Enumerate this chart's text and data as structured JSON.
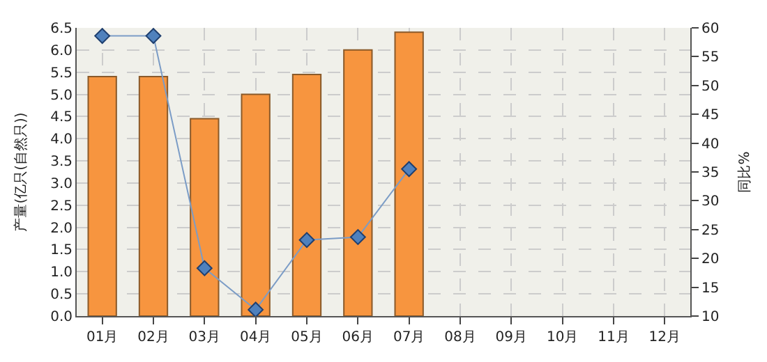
{
  "chart_data": {
    "type": "bar",
    "ylabel": "产量(亿只(自然只))",
    "y2label": "同比%",
    "categories": [
      "01月",
      "02月",
      "03月",
      "04月",
      "05月",
      "06月",
      "07月",
      "08月",
      "09月",
      "10月",
      "11月",
      "12月"
    ],
    "series": [
      {
        "color": "#f7953f",
        "values": [
          5.4,
          5.4,
          4.45,
          5.0,
          5.45,
          6.0,
          6.4,
          null,
          null,
          null,
          null,
          null
        ]
      },
      {
        "type": "line",
        "axis": "y2",
        "color": "#7b9cc6",
        "marker": "diamond",
        "values": [
          58.6,
          58.6,
          18.3,
          11.1,
          23.2,
          23.7,
          35.5,
          null,
          null,
          null,
          null,
          null
        ]
      }
    ],
    "ylim": [
      0,
      6.5
    ],
    "yticks": [
      {
        "value": 0,
        "label": "0.0"
      },
      0.5,
      {
        "value": 1,
        "label": "1.0"
      },
      1.5,
      {
        "value": 2,
        "label": "2.0"
      },
      2.5,
      {
        "value": 3,
        "label": "3.0"
      },
      3.5,
      {
        "value": 4,
        "label": "4.0"
      },
      4.5,
      {
        "value": 5,
        "label": "5.0"
      },
      5.5,
      {
        "value": 6,
        "label": "6.0"
      },
      6.5
    ],
    "y2lim": [
      10,
      60
    ],
    "y2ticks": [
      10,
      15,
      20,
      25,
      30,
      35,
      40,
      45,
      50,
      55,
      60
    ],
    "grid": true
  }
}
